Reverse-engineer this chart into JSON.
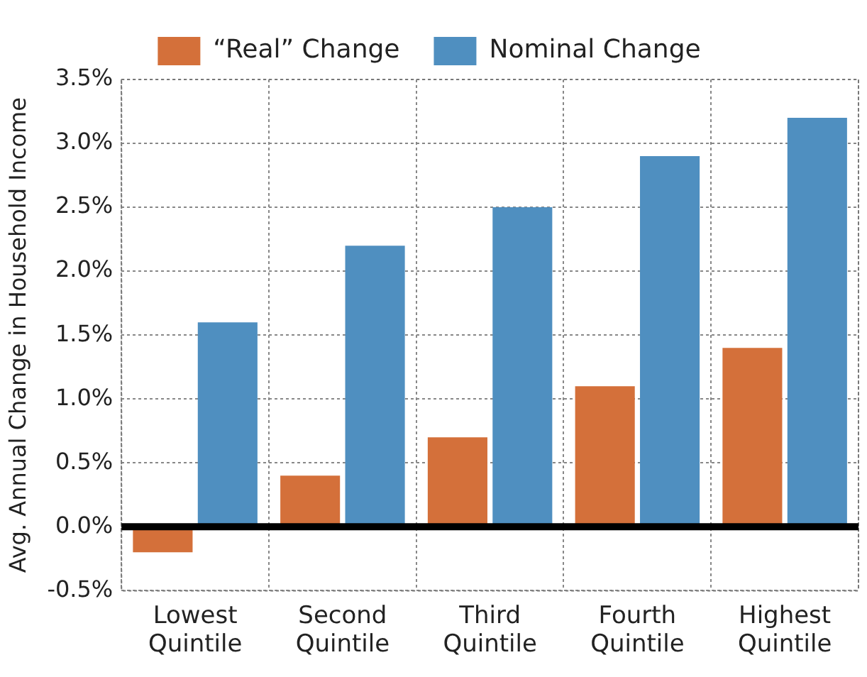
{
  "chart_data": {
    "type": "bar",
    "ylabel": "Avg. Annual Change in Household Income",
    "categories": [
      "Lowest Quintile",
      "Second Quintile",
      "Third Quintile",
      "Fourth Quintile",
      "Highest Quintile"
    ],
    "series": [
      {
        "name": "“Real” Change",
        "color": "#d4703a",
        "values": [
          -0.2,
          0.4,
          0.7,
          1.1,
          1.4
        ]
      },
      {
        "name": "Nominal Change",
        "color": "#4f8fc0",
        "values": [
          1.6,
          2.2,
          2.5,
          2.9,
          3.2
        ]
      }
    ],
    "ylim": [
      -0.5,
      3.5
    ],
    "yticks": [
      {
        "value": -0.5,
        "label": "-0.5%"
      },
      {
        "value": 0,
        "label": "0.0%"
      },
      {
        "value": 0.5,
        "label": "0.5%"
      },
      {
        "value": 1,
        "label": "1.0%"
      },
      {
        "value": 1.5,
        "label": "1.5%"
      },
      {
        "value": 2,
        "label": "2.0%"
      },
      {
        "value": 2.5,
        "label": "2.5%"
      },
      {
        "value": 3,
        "label": "3.0%"
      },
      {
        "value": 3.5,
        "label": "3.5%"
      }
    ],
    "grid": true,
    "legend": "top",
    "ref_lines": [
      {
        "axis": "y",
        "value": 0,
        "color": "#000000"
      }
    ]
  }
}
